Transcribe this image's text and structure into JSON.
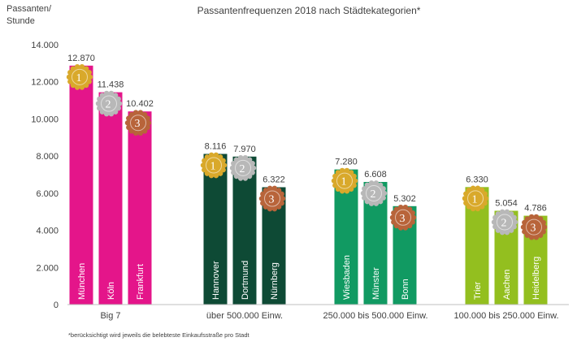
{
  "chart_data": {
    "type": "bar",
    "title": "Passantenfrequenzen 2018 nach Städtekategorien*",
    "ylabel": "Passanten/ Stunde",
    "ylabel_lines": [
      "Passanten/",
      "Stunde"
    ],
    "ylim": [
      0,
      14000
    ],
    "yticks": [
      0,
      2000,
      4000,
      6000,
      8000,
      10000,
      12000,
      14000
    ],
    "ytick_labels": [
      "0",
      "2.000",
      "4.000",
      "6.000",
      "8.000",
      "10.000",
      "12.000",
      "14.000"
    ],
    "grid": false,
    "footnote": "*berücksichtigt wird jeweils die belebteste Einkaufsstraße pro Stadt",
    "medal_colors": {
      "1": "#d9a92b",
      "2": "#b8b8b8",
      "3": "#b8643a"
    },
    "groups": [
      {
        "name": "Big 7",
        "color": "#e4158a",
        "bars": [
          {
            "city": "München",
            "value": 12870,
            "label": "12.870",
            "rank": 1
          },
          {
            "city": "Köln",
            "value": 11438,
            "label": "11.438",
            "rank": 2
          },
          {
            "city": "Frankfurt",
            "value": 10402,
            "label": "10.402",
            "rank": 3
          }
        ]
      },
      {
        "name": "über 500.000 Einw.",
        "color": "#0e4a35",
        "bars": [
          {
            "city": "Hannover",
            "value": 8116,
            "label": "8.116",
            "rank": 1
          },
          {
            "city": "Dortmund",
            "value": 7970,
            "label": "7.970",
            "rank": 2
          },
          {
            "city": "Nürnberg",
            "value": 6322,
            "label": "6.322",
            "rank": 3
          }
        ]
      },
      {
        "name": "250.000 bis 500.000 Einw.",
        "color": "#119a62",
        "bars": [
          {
            "city": "Wiesbaden",
            "value": 7280,
            "label": "7.280",
            "rank": 1
          },
          {
            "city": "Münster",
            "value": 6608,
            "label": "6.608",
            "rank": 2
          },
          {
            "city": "Bonn",
            "value": 5302,
            "label": "5.302",
            "rank": 3
          }
        ]
      },
      {
        "name": "100.000 bis 250.000 Einw.",
        "color": "#93bf1f",
        "bars": [
          {
            "city": "Trier",
            "value": 6330,
            "label": "6.330",
            "rank": 1
          },
          {
            "city": "Aachen",
            "value": 5054,
            "label": "5.054",
            "rank": 2
          },
          {
            "city": "Heidelberg",
            "value": 4786,
            "label": "4.786",
            "rank": 3
          }
        ]
      }
    ]
  }
}
